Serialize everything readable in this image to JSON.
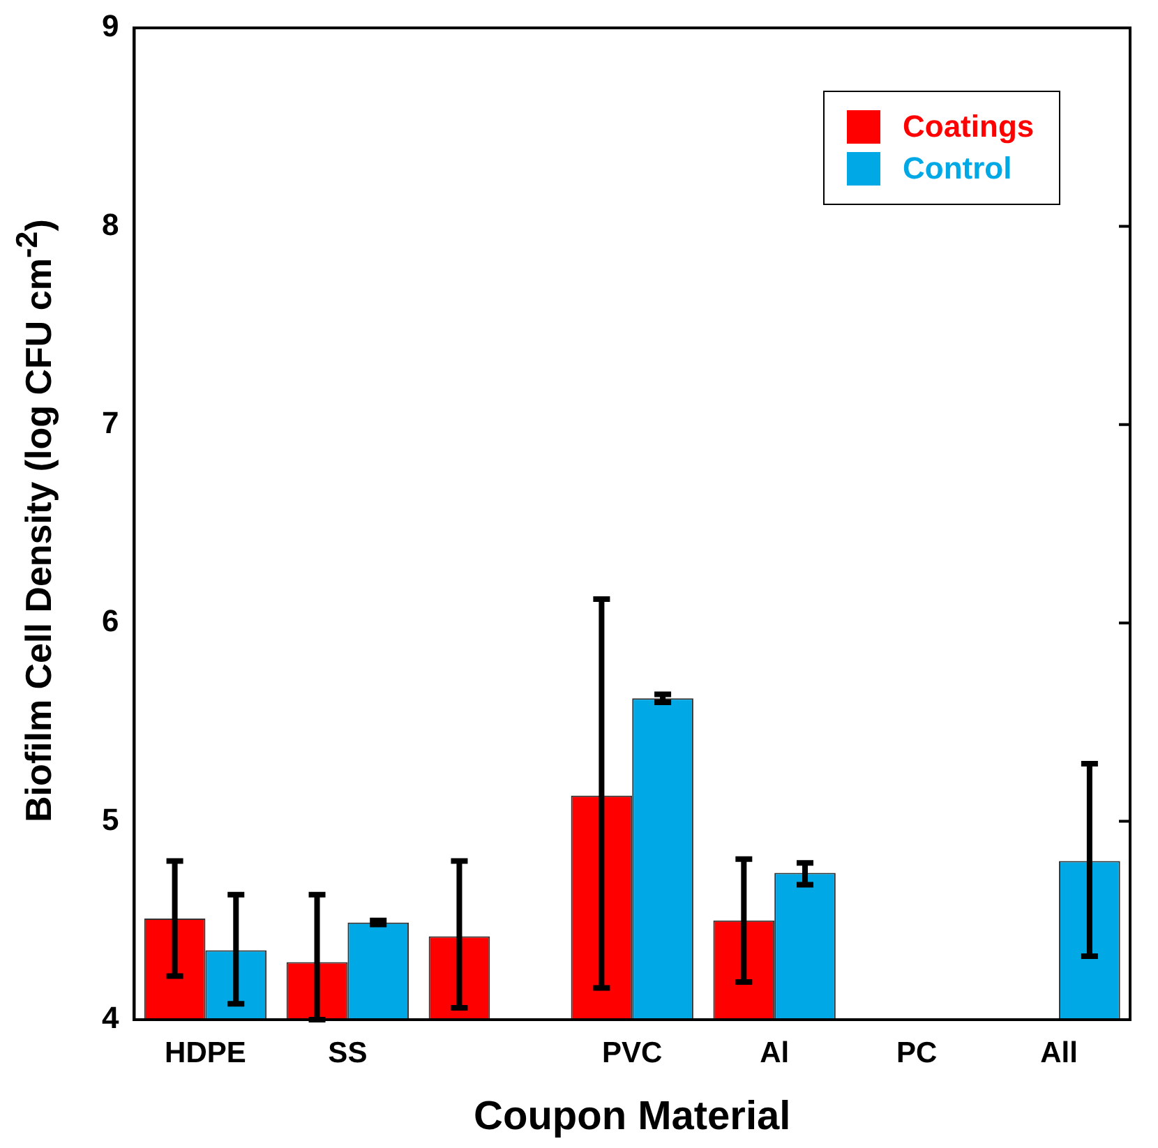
{
  "chart_data": {
    "type": "bar",
    "xlabel": "Coupon Material",
    "ylabel": "Biofilm Cell Density (log CFU  cm$^{-2}$)",
    "categories": [
      "HDPE",
      "SS",
      null,
      "PVC",
      "Al",
      "PC",
      "All"
    ],
    "series": [
      {
        "name": "Coatings",
        "color": "#ff0000",
        "values": [
          4.51,
          4.29,
          4.42,
          5.13,
          4.5,
          null,
          null
        ],
        "errors": [
          [
            4.22,
            4.8
          ],
          [
            4.0,
            4.63
          ],
          [
            4.06,
            4.8
          ],
          [
            4.16,
            6.12
          ],
          [
            4.19,
            4.81
          ],
          null,
          null
        ]
      },
      {
        "name": "Control",
        "color": "#00a9e6",
        "values": [
          4.35,
          4.49,
          null,
          5.62,
          4.74,
          null,
          4.8
        ],
        "errors": [
          [
            4.08,
            4.63
          ],
          [
            4.48,
            4.5
          ],
          null,
          [
            5.6,
            5.64
          ],
          [
            4.68,
            4.79
          ],
          null,
          [
            4.32,
            5.29
          ]
        ]
      }
    ],
    "ylim": [
      4,
      9
    ],
    "yticks": [
      4,
      5,
      6,
      7,
      8,
      9
    ],
    "grid": false,
    "legend": "top right"
  }
}
